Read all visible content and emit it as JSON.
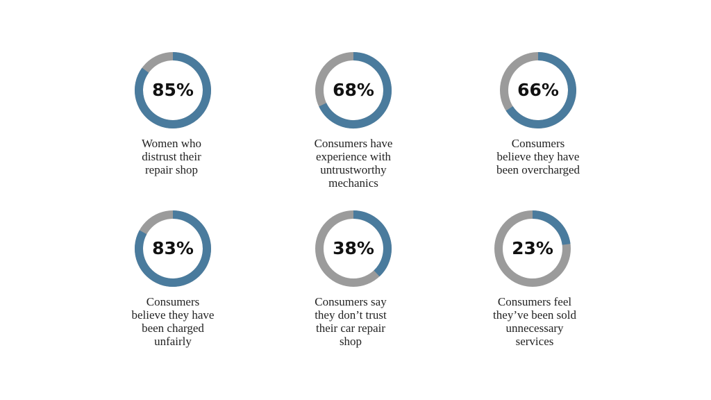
{
  "chart_data": [
    {
      "type": "donut",
      "values": [
        85
      ],
      "value_labels": [
        "85%"
      ],
      "color": "#4a7b9d",
      "track_color": "#9b9b9b",
      "caption_lines": [
        "Women who",
        "distrust their",
        "repair shop"
      ]
    },
    {
      "type": "donut",
      "values": [
        68
      ],
      "value_labels": [
        "68%"
      ],
      "color": "#4a7b9d",
      "track_color": "#9b9b9b",
      "caption_lines": [
        "Consumers have",
        "experience with",
        "untrustworthy",
        "mechanics"
      ]
    },
    {
      "type": "donut",
      "values": [
        66
      ],
      "value_labels": [
        "66%"
      ],
      "color": "#4a7b9d",
      "track_color": "#9b9b9b",
      "caption_lines": [
        "Consumers",
        "believe they have",
        "been overcharged"
      ]
    },
    {
      "type": "donut",
      "values": [
        83
      ],
      "value_labels": [
        "83%"
      ],
      "color": "#4a7b9d",
      "track_color": "#9b9b9b",
      "caption_lines": [
        "Consumers",
        "believe they have",
        "been charged",
        "unfairly"
      ]
    },
    {
      "type": "donut",
      "values": [
        38
      ],
      "value_labels": [
        "38%"
      ],
      "color": "#4a7b9d",
      "track_color": "#9b9b9b",
      "caption_lines": [
        "Consumers say",
        "they don’t trust",
        "their car repair",
        "shop"
      ]
    },
    {
      "type": "donut",
      "values": [
        23
      ],
      "value_labels": [
        "23%"
      ],
      "color": "#4a7b9d",
      "track_color": "#9b9b9b",
      "caption_lines": [
        "Consumers feel",
        "they’ve been sold",
        "unnecessary",
        "services"
      ]
    }
  ]
}
